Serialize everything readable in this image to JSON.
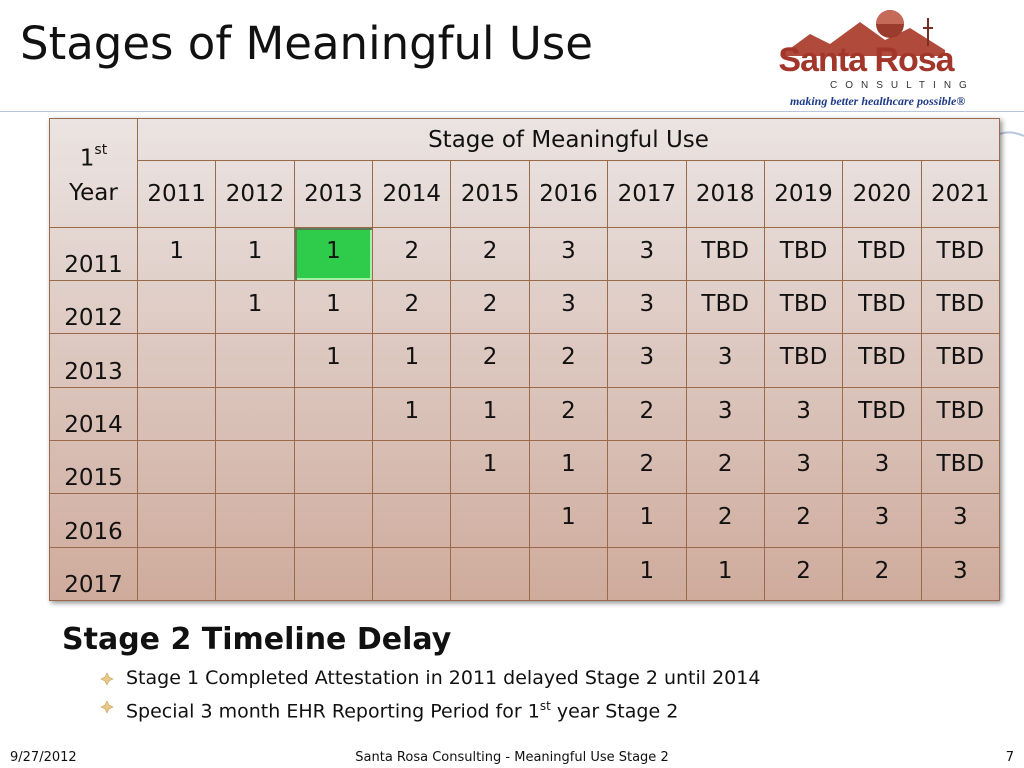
{
  "title": "Stages of Meaningful Use",
  "logo": {
    "name": "Santa Rosa",
    "consulting": "CONSULTING",
    "tagline": "making better healthcare possible®"
  },
  "table": {
    "first_year_label": "1",
    "first_year_sup": "st",
    "first_year_word": "Year",
    "stage_header": "Stage of Meaningful Use",
    "year_headers": [
      "2011",
      "2012",
      "2013",
      "2014",
      "2015",
      "2016",
      "2017",
      "2018",
      "2019",
      "2020",
      "2021"
    ],
    "rows": [
      {
        "year": "2011",
        "cells": [
          "1",
          "1",
          "1",
          "2",
          "2",
          "3",
          "3",
          "TBD",
          "TBD",
          "TBD",
          "TBD"
        ]
      },
      {
        "year": "2012",
        "cells": [
          "",
          "1",
          "1",
          "2",
          "2",
          "3",
          "3",
          "TBD",
          "TBD",
          "TBD",
          "TBD"
        ]
      },
      {
        "year": "2013",
        "cells": [
          "",
          "",
          "1",
          "1",
          "2",
          "2",
          "3",
          "3",
          "TBD",
          "TBD",
          "TBD"
        ]
      },
      {
        "year": "2014",
        "cells": [
          "",
          "",
          "",
          "1",
          "1",
          "2",
          "2",
          "3",
          "3",
          "TBD",
          "TBD"
        ]
      },
      {
        "year": "2015",
        "cells": [
          "",
          "",
          "",
          "",
          "1",
          "1",
          "2",
          "2",
          "3",
          "3",
          "TBD"
        ]
      },
      {
        "year": "2016",
        "cells": [
          "",
          "",
          "",
          "",
          "",
          "1",
          "1",
          "2",
          "2",
          "3",
          "3"
        ]
      },
      {
        "year": "2017",
        "cells": [
          "",
          "",
          "",
          "",
          "",
          "",
          "1",
          "1",
          "2",
          "2",
          "3"
        ]
      }
    ],
    "highlight_color": "#2ecc4a"
  },
  "section": {
    "heading": "Stage 2 Timeline Delay",
    "bullets": [
      {
        "text": "Stage 1 Completed Attestation in 2011 delayed Stage 2 until 2014"
      },
      {
        "pre": "Special 3 month EHR Reporting Period for 1",
        "sup": "st",
        "post": " year Stage 2"
      }
    ]
  },
  "footer": {
    "date": "9/27/2012",
    "center": "Santa Rosa Consulting - Meaningful Use Stage 2",
    "page": "7"
  },
  "colors": {
    "logo_red": "#a2362a",
    "tagline_blue": "#1f3b8a",
    "table_border": "#9a6a4a"
  }
}
